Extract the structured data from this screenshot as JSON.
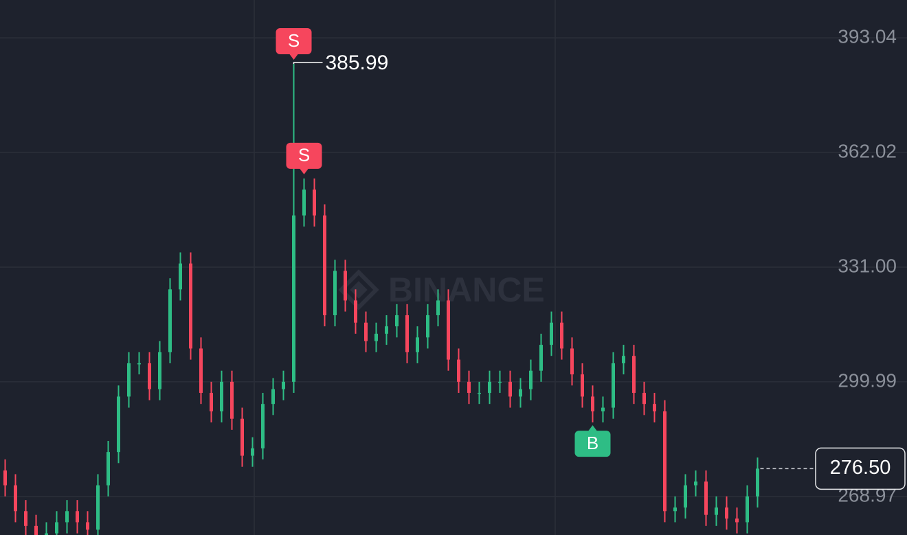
{
  "chart_data": {
    "type": "candlestick",
    "watermark": "BINANCE",
    "ylim": [
      258.55,
      403.27
    ],
    "yticks": [
      393.04,
      362.02,
      {
        "value": 331,
        "label": "331.00"
      },
      299.99,
      268.97
    ],
    "grid": true,
    "up_color": "#2ebd85",
    "down_color": "#f6465d",
    "open": [
      276,
      272,
      265,
      261,
      257,
      259,
      262,
      265,
      262,
      260,
      272,
      281,
      296,
      305,
      305,
      298,
      308,
      325,
      332,
      309,
      297,
      292,
      300,
      290,
      280,
      282,
      294,
      298,
      300,
      345,
      352,
      345,
      318,
      330,
      322,
      316,
      311,
      313,
      315,
      318,
      308,
      312,
      318,
      322,
      306,
      300,
      297,
      297,
      300,
      300,
      296,
      298,
      303,
      310,
      316,
      309,
      302,
      296,
      292,
      293,
      305,
      307,
      297,
      294,
      292,
      265,
      266,
      272,
      273,
      264,
      266,
      263,
      262,
      269
    ],
    "high": [
      279,
      275,
      268,
      264,
      262,
      265,
      268,
      268,
      265,
      275,
      284,
      299,
      308,
      308,
      308,
      311,
      328,
      335,
      335,
      312,
      300,
      303,
      303,
      293,
      285,
      297,
      301,
      303,
      385.99,
      355,
      355,
      348,
      333,
      333,
      325,
      319,
      316,
      318,
      321,
      321,
      315,
      321,
      325,
      325,
      309,
      303,
      300,
      303,
      303,
      303,
      301,
      306,
      313,
      319,
      319,
      312,
      305,
      299,
      296,
      308,
      310,
      310,
      300,
      297,
      295,
      269,
      275,
      276,
      276,
      269,
      269,
      266,
      272,
      279.5
    ],
    "low": [
      269,
      262,
      258,
      254,
      254,
      256,
      259,
      259,
      257,
      257,
      269,
      278,
      293,
      302,
      295,
      295,
      305,
      322,
      306,
      294,
      289,
      289,
      287,
      277,
      277,
      279,
      291,
      295,
      297,
      342,
      342,
      315,
      315,
      319,
      313,
      308,
      308,
      310,
      312,
      305,
      305,
      309,
      315,
      303,
      297,
      294,
      294,
      294,
      297,
      293,
      293,
      295,
      300,
      307,
      306,
      299,
      293,
      289,
      289,
      290,
      302,
      294,
      291,
      289,
      262,
      262,
      263,
      269,
      261,
      261,
      260,
      259,
      259,
      266
    ],
    "close": [
      272,
      265,
      261,
      257,
      259,
      262,
      265,
      262,
      260,
      272,
      281,
      296,
      305,
      305,
      298,
      308,
      325,
      332,
      309,
      297,
      292,
      300,
      290,
      280,
      282,
      294,
      298,
      300,
      345,
      352,
      345,
      318,
      330,
      322,
      316,
      311,
      313,
      315,
      318,
      308,
      312,
      318,
      322,
      306,
      300,
      297,
      297,
      300,
      300,
      296,
      298,
      303,
      310,
      316,
      309,
      302,
      296,
      292,
      293,
      305,
      307,
      297,
      294,
      292,
      265,
      266,
      272,
      273,
      264,
      266,
      263,
      262,
      269,
      276.5
    ],
    "high_label": 385.99,
    "last_price": {
      "value": 276.5,
      "label": "276.50"
    },
    "markers": [
      {
        "text": "S",
        "candle": 28,
        "at": "high",
        "color": "#f6465d"
      },
      {
        "text": "S",
        "candle": 29,
        "at": "high",
        "color": "#f6465d"
      },
      {
        "text": "B",
        "candle": 57,
        "at": "low",
        "color": "#2ebd85"
      }
    ]
  }
}
